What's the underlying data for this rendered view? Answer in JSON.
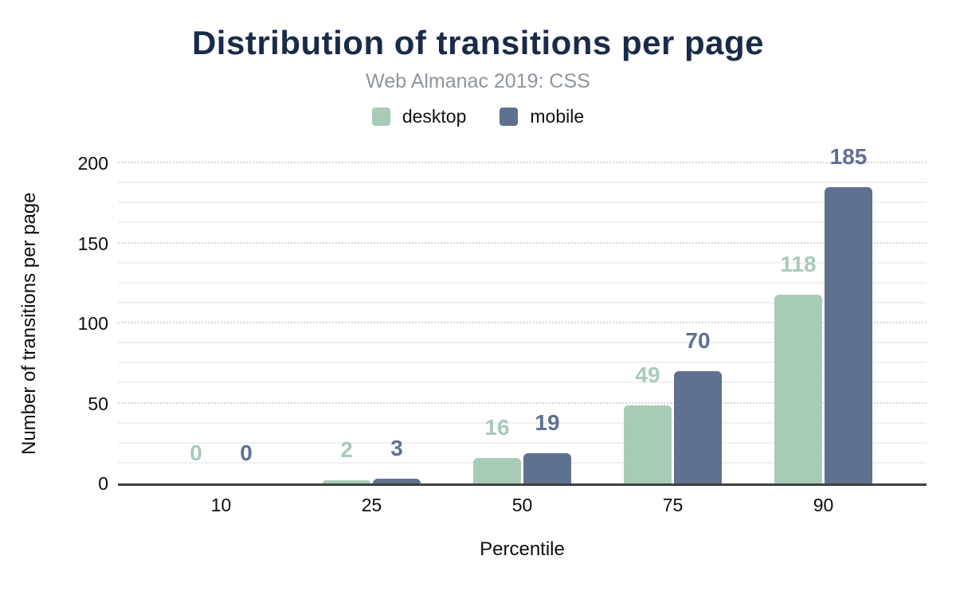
{
  "chart_data": {
    "type": "bar",
    "title": "Distribution of transitions per page",
    "subtitle": "Web Almanac 2019: CSS",
    "xlabel": "Percentile",
    "ylabel": "Number of transitions per page",
    "categories": [
      "10",
      "25",
      "50",
      "75",
      "90"
    ],
    "series": [
      {
        "name": "desktop",
        "color": "#a8cbb7",
        "values": [
          0,
          2,
          16,
          49,
          118
        ]
      },
      {
        "name": "mobile",
        "color": "#5f7191",
        "values": [
          0,
          3,
          19,
          70,
          185
        ]
      }
    ],
    "ylim": [
      0,
      200
    ],
    "y_ticks": [
      0,
      50,
      100,
      150,
      200
    ],
    "minor_grid_step": 12.5,
    "grid": true,
    "legend_position": "top",
    "data_labels_shown": true
  },
  "colors": {
    "title": "#1a2b49",
    "subtitle": "#8f959d",
    "axis_text": "#0d0d0d",
    "major_gridline": "#d4d4d4",
    "minor_gridline": "#f0f0f0",
    "axis_line": "#3f3f3f",
    "background": "#ffffff"
  }
}
